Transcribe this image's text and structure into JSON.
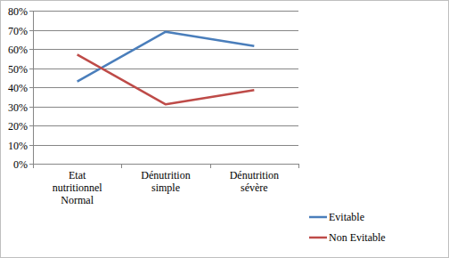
{
  "chart_data": {
    "type": "line",
    "categories": [
      "Etat nutritionnel Normal",
      "Dénutrition simple",
      "Dénutrition sévère"
    ],
    "series": [
      {
        "name": "Evitable",
        "color": "#4a7ebb",
        "values": [
          43,
          69,
          61.5
        ]
      },
      {
        "name": "Non Evitable",
        "color": "#be4b48",
        "values": [
          57,
          31,
          38.5
        ]
      }
    ],
    "ylim": [
      0,
      80
    ],
    "yticks": [
      {
        "value": 0,
        "label": "0%"
      },
      {
        "value": 10,
        "label": "10%"
      },
      {
        "value": 20,
        "label": "20%"
      },
      {
        "value": 30,
        "label": "30%"
      },
      {
        "value": 40,
        "label": "40%"
      },
      {
        "value": 50,
        "label": "50%"
      },
      {
        "value": 60,
        "label": "60%"
      },
      {
        "value": 70,
        "label": "70%"
      },
      {
        "value": 80,
        "label": "80%"
      }
    ],
    "grid": true,
    "legend": "right"
  }
}
